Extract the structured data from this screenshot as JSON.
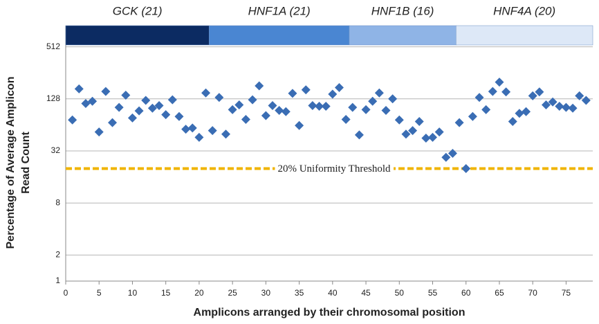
{
  "chart_data": {
    "type": "scatter",
    "xlabel": "Amplicons arranged by their chromosomal position",
    "ylabel": [
      "Percentage of Average  Amplicon",
      "Read Count"
    ],
    "log_y": true,
    "log_base": 2,
    "grid": true,
    "color": "#3a6db4",
    "x": [
      1,
      2,
      3,
      4,
      5,
      6,
      7,
      8,
      9,
      10,
      11,
      12,
      13,
      14,
      15,
      16,
      17,
      18,
      19,
      20,
      21,
      22,
      23,
      24,
      25,
      26,
      27,
      28,
      29,
      30,
      31,
      32,
      33,
      34,
      35,
      36,
      37,
      38,
      39,
      40,
      41,
      42,
      43,
      44,
      45,
      46,
      47,
      48,
      49,
      50,
      51,
      52,
      53,
      54,
      55,
      56,
      57,
      58,
      59,
      60,
      61,
      62,
      63,
      64,
      65,
      66,
      67,
      68,
      69,
      70,
      71,
      72,
      73,
      74,
      75,
      76,
      77,
      78
    ],
    "values": [
      73,
      167,
      113,
      120,
      53,
      156,
      68,
      102,
      141,
      77,
      93,
      123,
      100,
      107,
      84,
      125,
      80,
      57,
      59,
      46,
      150,
      55,
      133,
      50,
      96,
      109,
      74,
      125,
      181,
      82,
      107,
      94,
      91,
      148,
      63,
      163,
      107,
      105,
      105,
      145,
      173,
      74,
      102,
      49,
      96,
      120,
      150,
      94,
      128,
      73,
      50,
      55,
      70,
      45,
      46,
      53,
      27,
      30,
      68,
      20,
      80,
      133,
      96,
      156,
      200,
      154,
      70,
      87,
      91,
      139,
      154,
      109,
      118,
      105,
      102,
      100,
      139,
      123
    ],
    "xlim": [
      0,
      79
    ],
    "xticks": [
      0,
      5,
      10,
      15,
      20,
      25,
      30,
      35,
      40,
      45,
      50,
      55,
      60,
      65,
      70,
      75
    ],
    "ylim": [
      1,
      1024
    ],
    "yticks": [
      1,
      2,
      8,
      32,
      128,
      512
    ],
    "threshold": {
      "value": 20,
      "label": "20% Uniformity Threshold",
      "color": "#f0b400"
    },
    "bands": [
      {
        "label": "GCK (21)",
        "count": 21,
        "color": "#0c2b62"
      },
      {
        "label": "HNF1A (21)",
        "count": 21,
        "color": "#4a86d2"
      },
      {
        "label": "HNF1B (16)",
        "count": 16,
        "color": "#8fb4e6"
      },
      {
        "label": "HNF4A (20)",
        "count": 20,
        "color": "#dde8f7"
      }
    ]
  }
}
